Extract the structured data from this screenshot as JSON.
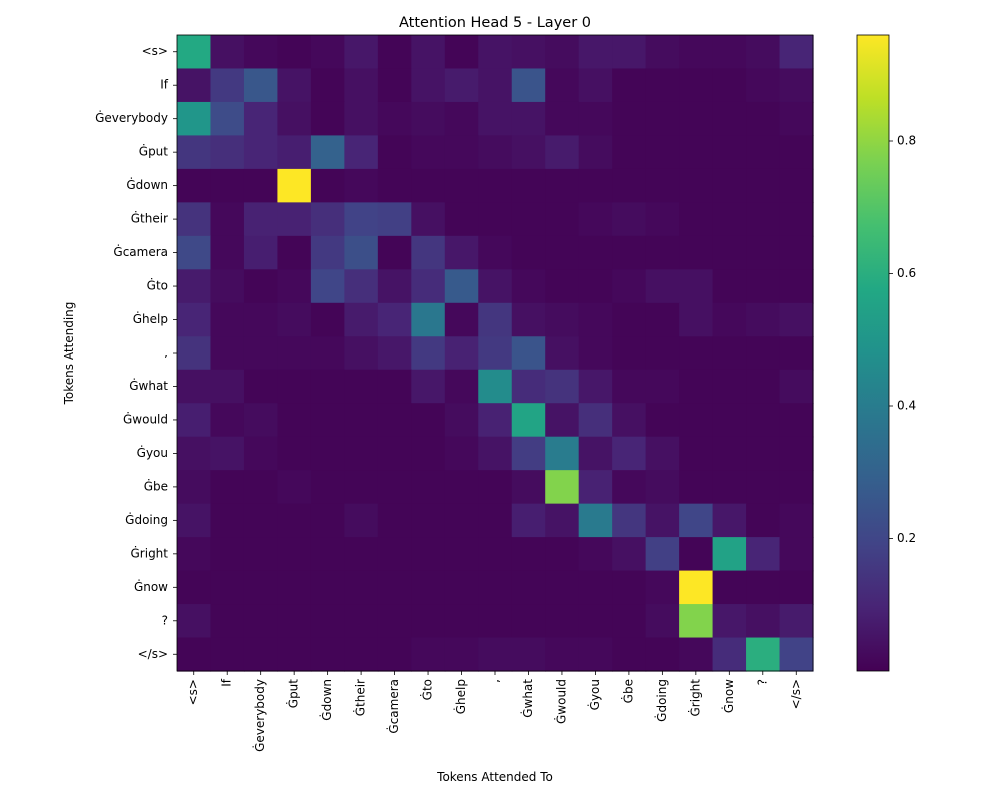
{
  "chart_data": {
    "type": "heatmap",
    "title": "Attention Head 5 - Layer 0",
    "xlabel": "Tokens Attended To",
    "ylabel": "Tokens Attending",
    "colormap": "viridis",
    "colorbar": {
      "range": [
        0,
        0.96
      ],
      "ticks": [
        0.2,
        0.4,
        0.6,
        0.8
      ]
    },
    "x_tokens": [
      "<s>",
      "If",
      "Ġeverybody",
      "Ġput",
      "Ġdown",
      "Ġtheir",
      "Ġcamera",
      "Ġto",
      "Ġhelp",
      ",",
      "Ġwhat",
      "Ġwould",
      "Ġyou",
      "Ġbe",
      "Ġdoing",
      "Ġright",
      "Ġnow",
      "?",
      "</s>"
    ],
    "y_tokens": [
      "<s>",
      "If",
      "Ġeverybody",
      "Ġput",
      "Ġdown",
      "Ġtheir",
      "Ġcamera",
      "Ġto",
      "Ġhelp",
      ",",
      "Ġwhat",
      "Ġwould",
      "Ġyou",
      "Ġbe",
      "Ġdoing",
      "Ġright",
      "Ġnow",
      "?",
      "</s>"
    ],
    "values": [
      [
        0.58,
        0.04,
        0.02,
        0.01,
        0.02,
        0.06,
        0.01,
        0.05,
        0.01,
        0.05,
        0.04,
        0.03,
        0.06,
        0.06,
        0.03,
        0.02,
        0.02,
        0.03,
        0.1
      ],
      [
        0.05,
        0.16,
        0.26,
        0.05,
        0.01,
        0.04,
        0.01,
        0.05,
        0.07,
        0.05,
        0.25,
        0.02,
        0.04,
        0.01,
        0.01,
        0.01,
        0.01,
        0.02,
        0.03
      ],
      [
        0.5,
        0.22,
        0.1,
        0.04,
        0.01,
        0.04,
        0.02,
        0.03,
        0.02,
        0.05,
        0.05,
        0.02,
        0.02,
        0.01,
        0.01,
        0.01,
        0.01,
        0.01,
        0.02
      ],
      [
        0.15,
        0.13,
        0.1,
        0.08,
        0.3,
        0.1,
        0.01,
        0.02,
        0.02,
        0.03,
        0.04,
        0.07,
        0.03,
        0.01,
        0.01,
        0.01,
        0.01,
        0.01,
        0.01
      ],
      [
        0.01,
        0.01,
        0.01,
        0.96,
        0.01,
        0.02,
        0.01,
        0.01,
        0.01,
        0.01,
        0.01,
        0.01,
        0.01,
        0.01,
        0.01,
        0.01,
        0.01,
        0.01,
        0.01
      ],
      [
        0.14,
        0.02,
        0.09,
        0.09,
        0.13,
        0.19,
        0.18,
        0.04,
        0.01,
        0.01,
        0.01,
        0.01,
        0.02,
        0.03,
        0.02,
        0.01,
        0.01,
        0.01,
        0.01
      ],
      [
        0.21,
        0.02,
        0.08,
        0.01,
        0.16,
        0.23,
        0.01,
        0.15,
        0.06,
        0.02,
        0.01,
        0.01,
        0.01,
        0.01,
        0.01,
        0.01,
        0.01,
        0.01,
        0.01
      ],
      [
        0.07,
        0.03,
        0.01,
        0.02,
        0.2,
        0.13,
        0.05,
        0.12,
        0.27,
        0.05,
        0.02,
        0.01,
        0.01,
        0.02,
        0.04,
        0.04,
        0.01,
        0.01,
        0.01
      ],
      [
        0.1,
        0.02,
        0.02,
        0.03,
        0.01,
        0.07,
        0.1,
        0.38,
        0.02,
        0.15,
        0.04,
        0.03,
        0.02,
        0.01,
        0.01,
        0.04,
        0.02,
        0.03,
        0.04
      ],
      [
        0.14,
        0.02,
        0.02,
        0.02,
        0.02,
        0.04,
        0.06,
        0.16,
        0.09,
        0.16,
        0.25,
        0.04,
        0.02,
        0.01,
        0.01,
        0.01,
        0.01,
        0.01,
        0.01
      ],
      [
        0.04,
        0.04,
        0.01,
        0.01,
        0.01,
        0.01,
        0.01,
        0.06,
        0.02,
        0.46,
        0.12,
        0.14,
        0.06,
        0.02,
        0.02,
        0.01,
        0.01,
        0.01,
        0.03
      ],
      [
        0.08,
        0.02,
        0.03,
        0.01,
        0.01,
        0.01,
        0.01,
        0.01,
        0.03,
        0.09,
        0.56,
        0.05,
        0.13,
        0.04,
        0.01,
        0.01,
        0.01,
        0.01,
        0.01
      ],
      [
        0.04,
        0.05,
        0.02,
        0.01,
        0.01,
        0.01,
        0.01,
        0.01,
        0.02,
        0.05,
        0.17,
        0.4,
        0.05,
        0.1,
        0.04,
        0.01,
        0.01,
        0.01,
        0.01
      ],
      [
        0.03,
        0.01,
        0.01,
        0.02,
        0.01,
        0.01,
        0.01,
        0.01,
        0.01,
        0.01,
        0.03,
        0.78,
        0.09,
        0.02,
        0.03,
        0.01,
        0.01,
        0.01,
        0.01
      ],
      [
        0.05,
        0.01,
        0.01,
        0.01,
        0.01,
        0.03,
        0.01,
        0.01,
        0.01,
        0.01,
        0.08,
        0.05,
        0.39,
        0.15,
        0.05,
        0.2,
        0.06,
        0.01,
        0.02
      ],
      [
        0.02,
        0.01,
        0.01,
        0.01,
        0.01,
        0.01,
        0.01,
        0.01,
        0.01,
        0.01,
        0.01,
        0.01,
        0.02,
        0.04,
        0.18,
        0.01,
        0.55,
        0.1,
        0.02
      ],
      [
        0.01,
        0.01,
        0.01,
        0.01,
        0.01,
        0.01,
        0.01,
        0.01,
        0.01,
        0.01,
        0.01,
        0.01,
        0.01,
        0.01,
        0.02,
        0.96,
        0.01,
        0.01,
        0.01
      ],
      [
        0.04,
        0.01,
        0.01,
        0.01,
        0.01,
        0.01,
        0.01,
        0.01,
        0.01,
        0.01,
        0.01,
        0.01,
        0.01,
        0.01,
        0.03,
        0.78,
        0.06,
        0.04,
        0.07
      ],
      [
        0.01,
        0.01,
        0.01,
        0.01,
        0.01,
        0.01,
        0.01,
        0.02,
        0.02,
        0.03,
        0.03,
        0.02,
        0.02,
        0.01,
        0.01,
        0.02,
        0.12,
        0.6,
        0.19
      ]
    ]
  }
}
